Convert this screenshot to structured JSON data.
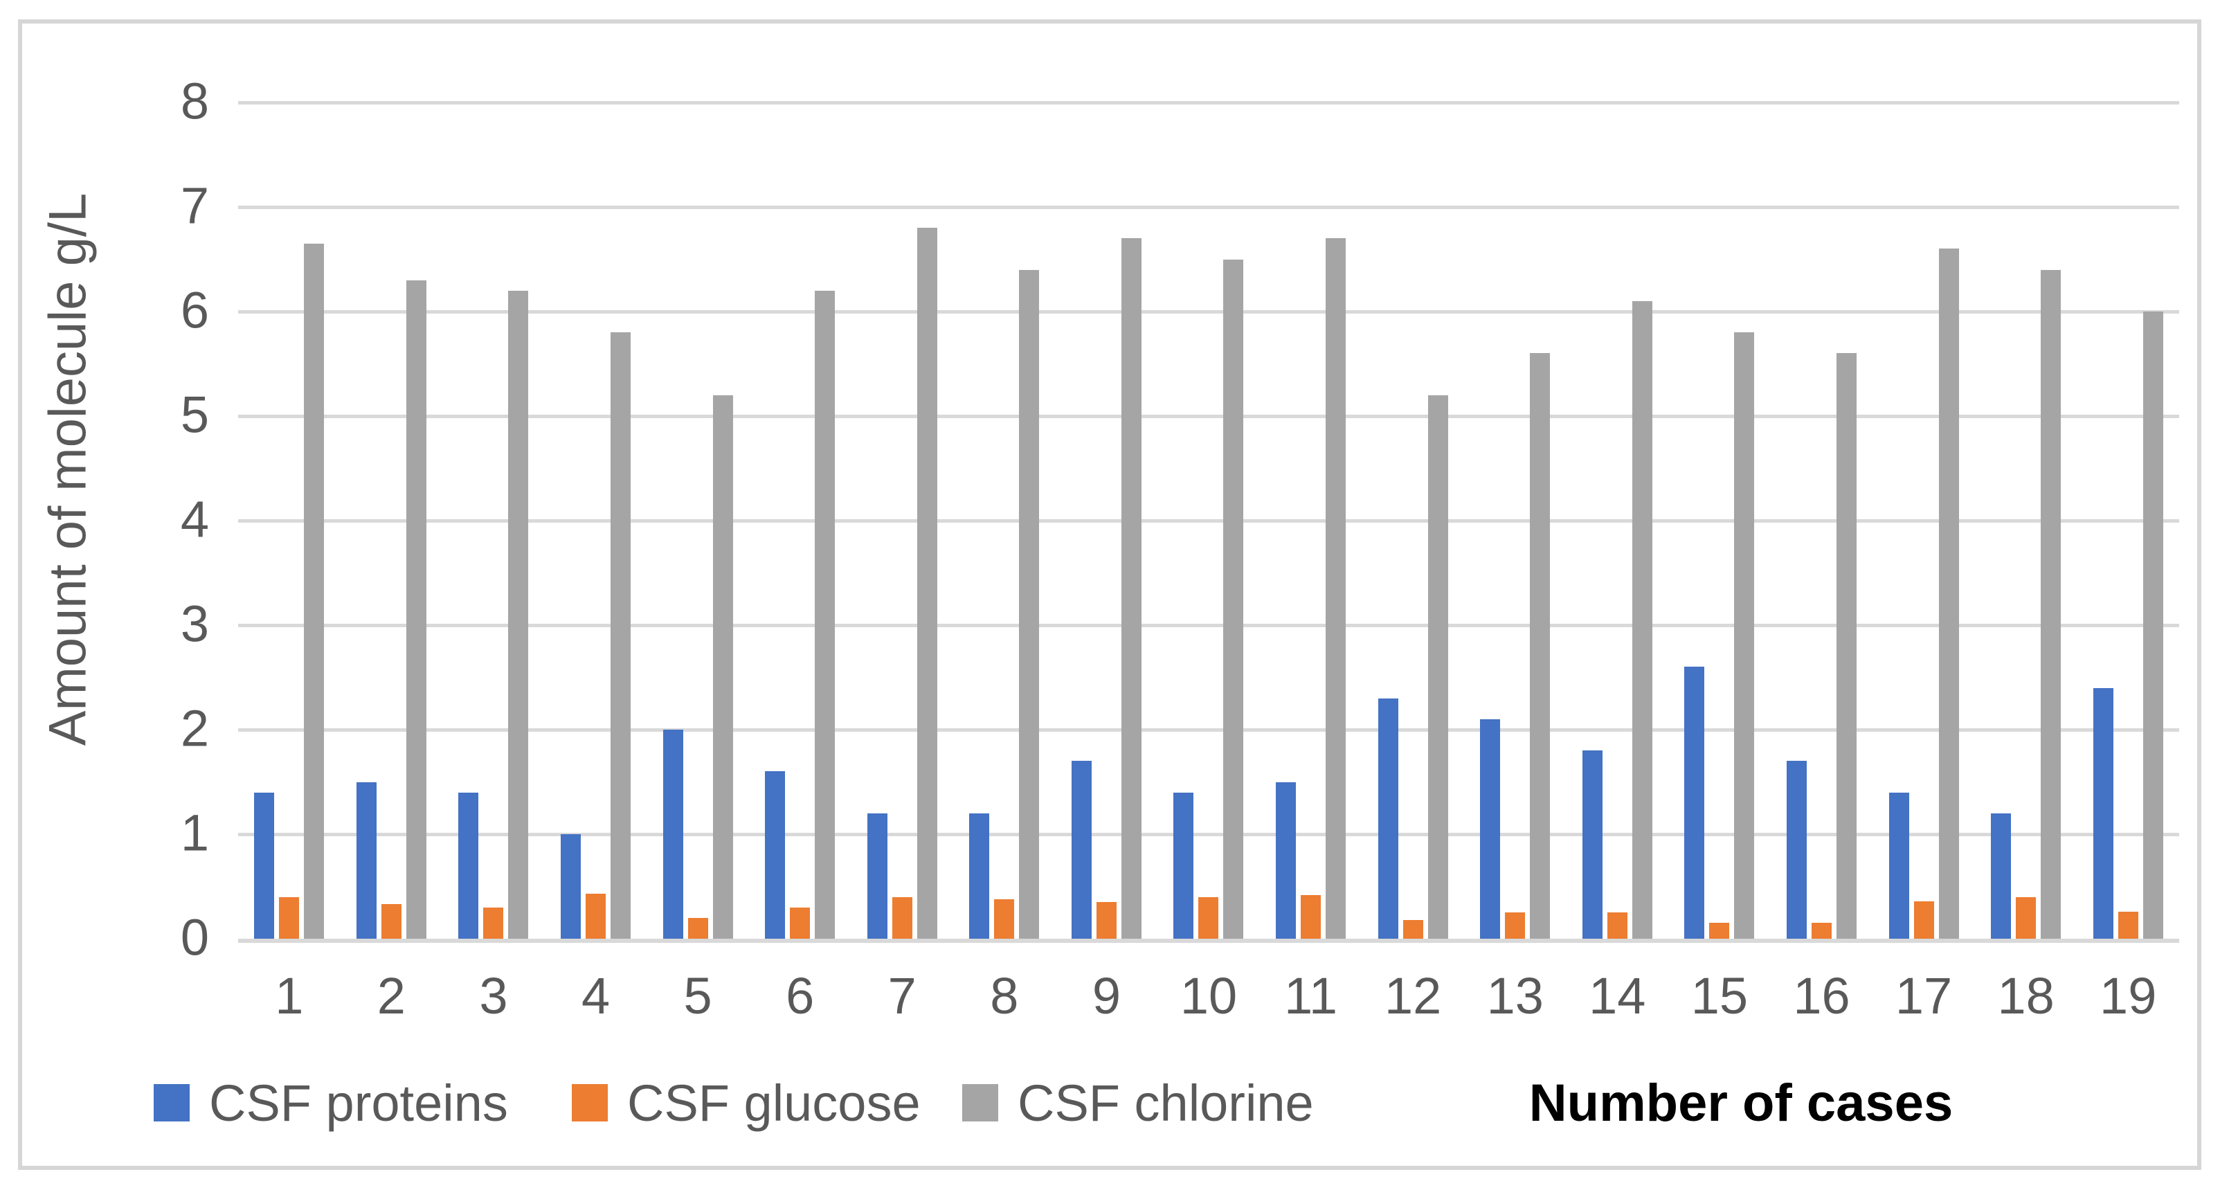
{
  "chart_data": {
    "type": "bar",
    "title": "",
    "xlabel": "Number of cases",
    "ylabel": "Amount of molecule g/L",
    "ylim": [
      0,
      8
    ],
    "yticks": [
      0,
      1,
      2,
      3,
      4,
      5,
      6,
      7,
      8
    ],
    "grid": true,
    "legend_position": "bottom",
    "gridline_color": "#d9d9d9",
    "axis_text_color": "#595959",
    "categories": [
      "1",
      "2",
      "3",
      "4",
      "5",
      "6",
      "7",
      "8",
      "9",
      "10",
      "11",
      "12",
      "13",
      "14",
      "15",
      "16",
      "17",
      "18",
      "19"
    ],
    "series": [
      {
        "key": "csf-proteins",
        "name": "CSF proteins",
        "color": "#4472C4",
        "values": [
          1.4,
          1.5,
          1.4,
          1.0,
          2.0,
          1.6,
          1.2,
          1.2,
          1.7,
          1.4,
          1.5,
          2.3,
          2.1,
          1.8,
          2.6,
          1.7,
          1.4,
          1.2,
          2.4
        ]
      },
      {
        "key": "csf-glucose",
        "name": "CSF glucose",
        "color": "#ED7D31",
        "values": [
          0.4,
          0.33,
          0.3,
          0.43,
          0.2,
          0.3,
          0.4,
          0.38,
          0.35,
          0.4,
          0.42,
          0.18,
          0.25,
          0.25,
          0.15,
          0.15,
          0.36,
          0.4,
          0.26
        ]
      },
      {
        "key": "csf-chlorine",
        "name": "CSF chlorine",
        "color": "#A5A5A5",
        "values": [
          6.65,
          6.3,
          6.2,
          5.8,
          5.2,
          6.2,
          6.8,
          6.4,
          6.7,
          6.5,
          6.7,
          5.2,
          5.6,
          6.1,
          5.8,
          5.6,
          6.6,
          6.4,
          6.0
        ]
      }
    ]
  }
}
